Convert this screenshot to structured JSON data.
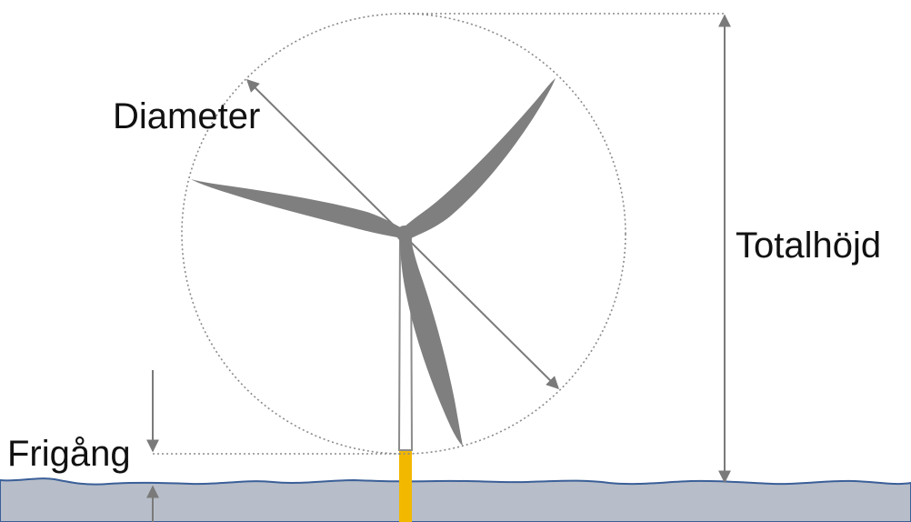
{
  "labels": {
    "diameter": "Diameter",
    "total_height": "Totalhöjd",
    "clearance": "Frigång"
  },
  "colors": {
    "background": "#ffffff",
    "blade": "#7f7f7f",
    "tower_outline": "#8c8c8c",
    "foundation": "#f2b800",
    "water_fill": "#b7bec9",
    "water_line": "#3b5f98",
    "dimension_line": "#7a7a7a",
    "guide_line": "#8a8a8a"
  },
  "icons": {
    "turbine": "wind-turbine-icon",
    "dimension_arrow": "double-arrow-icon"
  }
}
